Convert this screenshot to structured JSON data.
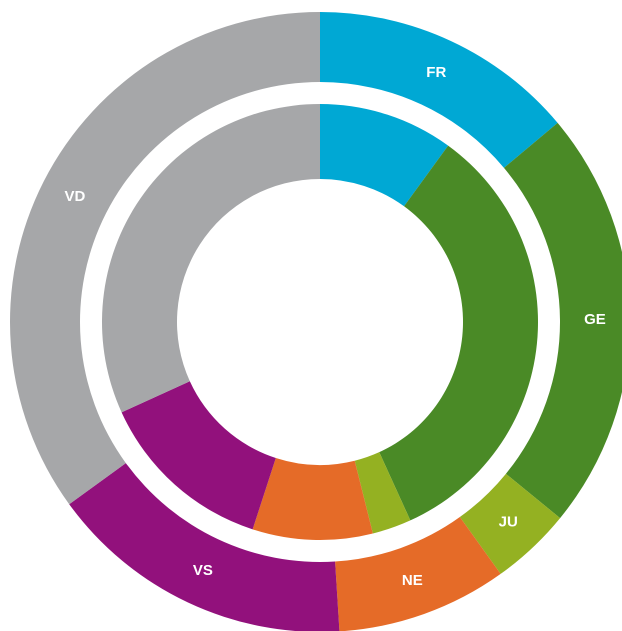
{
  "chart_data": {
    "type": "nested-donut",
    "categories": [
      "FR",
      "GE",
      "JU",
      "NE",
      "VS",
      "VD"
    ],
    "colors": [
      "#00a8d4",
      "#4a8a26",
      "#94b122",
      "#e56b28",
      "#92117c",
      "#a6a7a9"
    ],
    "series": [
      {
        "values": [
          13.9,
          22,
          4.2,
          8.9,
          16,
          35
        ]
      },
      {
        "values": [
          10,
          33.2,
          2.9,
          8.9,
          13.2,
          31.8
        ]
      }
    ]
  }
}
